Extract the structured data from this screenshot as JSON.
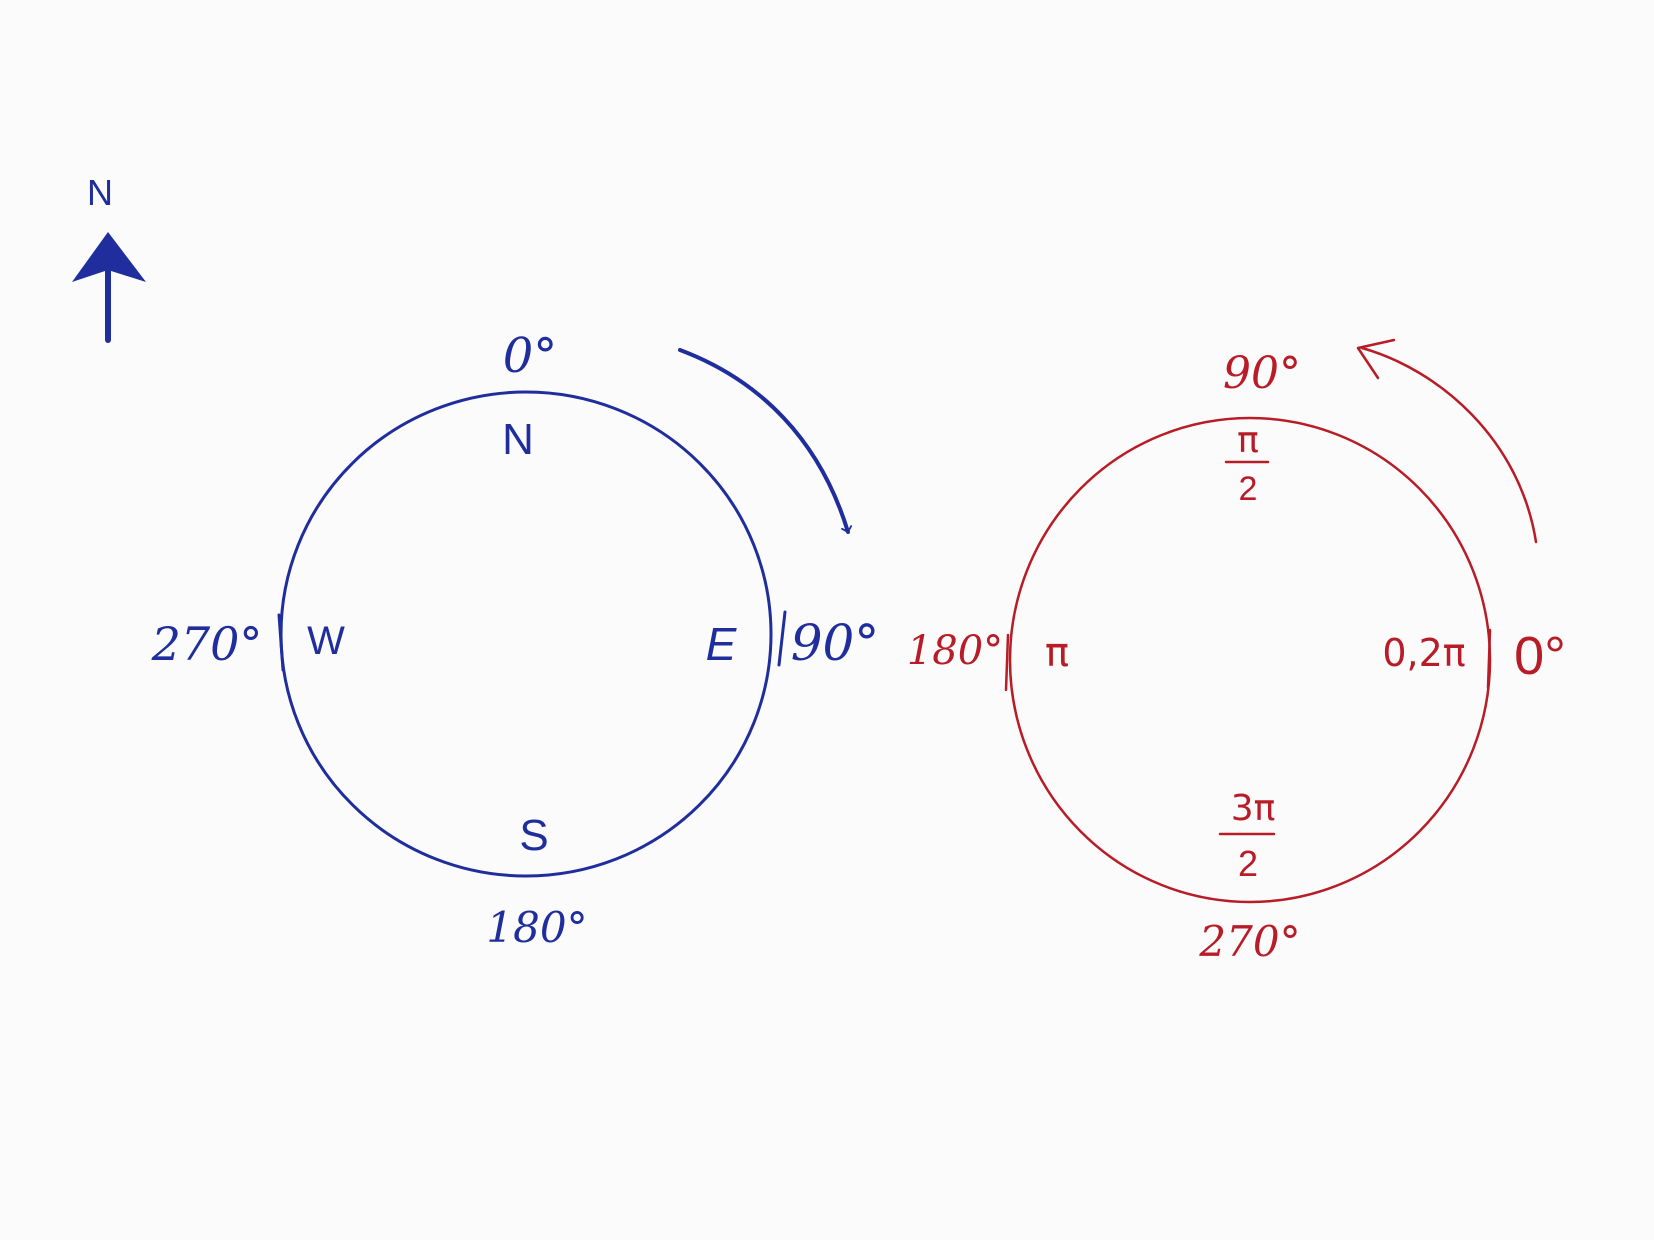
{
  "north_indicator": {
    "label": "N"
  },
  "compass": {
    "color": "#1f2e9c",
    "top_degree": "0°",
    "right_degree": "90°",
    "bottom_degree": "180°",
    "left_degree": "270°",
    "north": "N",
    "east": "E",
    "south": "S",
    "west": "W",
    "direction": "clockwise"
  },
  "unit_circle": {
    "color": "#b81c27",
    "top_degree": "90°",
    "left_degree": "180°",
    "bottom_degree": "270°",
    "right_degree": "0°",
    "top_radian_num": "π",
    "top_radian_den": "2",
    "left_radian": "π",
    "bottom_radian_num": "3π",
    "bottom_radian_den": "2",
    "right_radian": "0,2π",
    "direction": "counterclockwise"
  }
}
